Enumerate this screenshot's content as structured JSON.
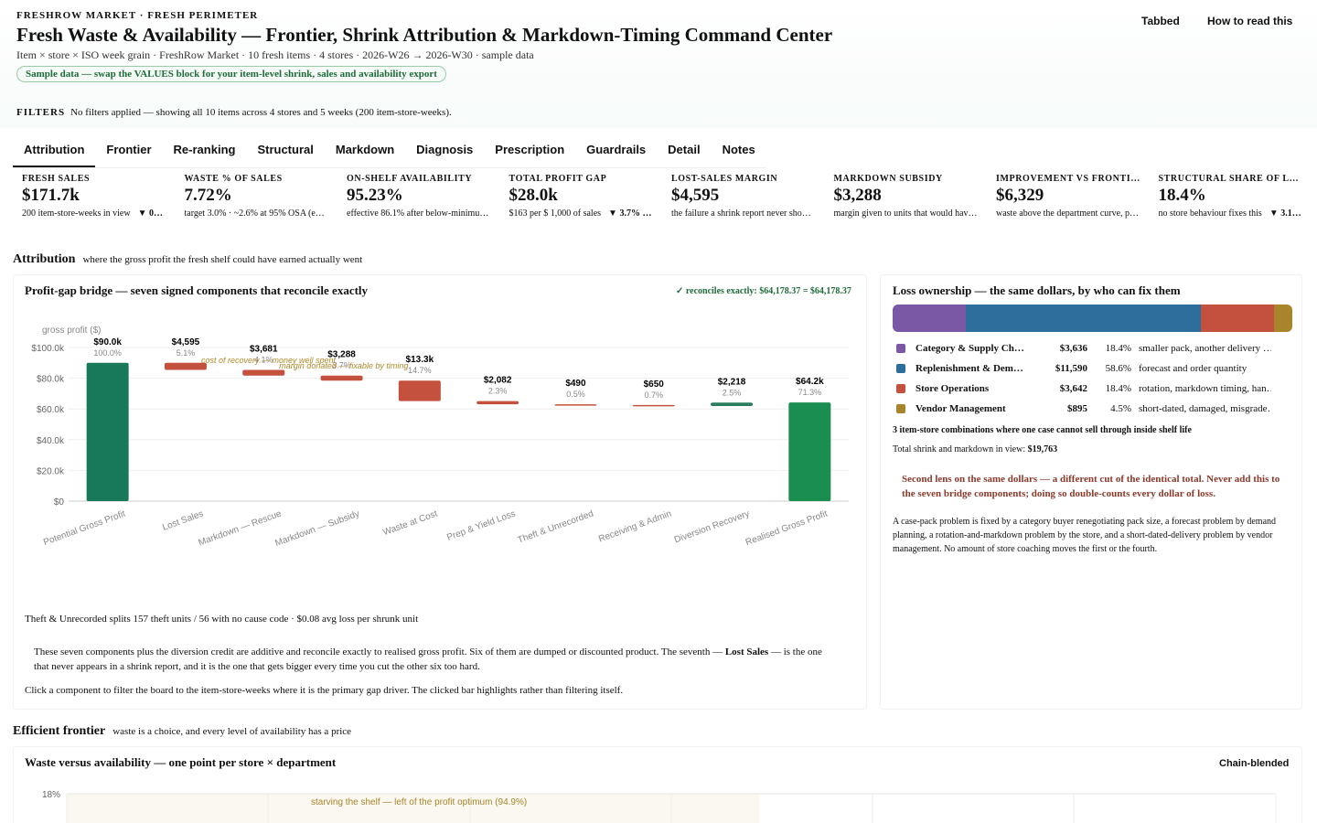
{
  "header": {
    "kicker": "FRESHROW MARKET · FRESH PERIMETER",
    "title": "Fresh Waste & Availability — Frontier, Shrink Attribution & Markdown-Timing Command Center",
    "subtitle": "Item × store × ISO week grain · FreshRow Market · 10 fresh items · 4 stores · 2026-W26 → 2026-W30 · sample data",
    "badge": "Sample data — swap the VALUES block for your item-level shrink, sales and availability export",
    "buttons": [
      "Tabbed",
      "How to read this"
    ]
  },
  "filters": {
    "label": "FILTERS",
    "text": "No filters applied — showing all 10 items across 4 stores and 5 weeks (200 item-store-weeks)."
  },
  "tabs": [
    "Attribution",
    "Frontier",
    "Re-ranking",
    "Structural",
    "Markdown",
    "Diagnosis",
    "Prescription",
    "Guardrails",
    "Detail",
    "Notes"
  ],
  "kpis": [
    {
      "label": "FRESH SALES",
      "value": "$171.7k",
      "note": "200 item-store-weeks in view",
      "delta": "▼ 0…"
    },
    {
      "label": "WASTE % OF SALES",
      "value": "7.72%",
      "note": "target 3.0% · ~2.6% at 95% OSA (e…"
    },
    {
      "label": "ON-SHELF AVAILABILITY",
      "value": "95.23%",
      "note": "effective 86.1% after below-minimu…"
    },
    {
      "label": "TOTAL PROFIT GAP",
      "value": "$28.0k",
      "note": "$163 per $ 1,000 of sales",
      "delta": "▼ 3.7% …"
    },
    {
      "label": "LOST-SALES MARGIN",
      "value": "$4,595",
      "note": "the failure a shrink report never sho…"
    },
    {
      "label": "MARKDOWN SUBSIDY",
      "value": "$3,288",
      "note": "margin given to units that would hav…"
    },
    {
      "label": "IMPROVEMENT VS FRONTI…",
      "value": "$6,329",
      "note": "waste above the department curve, p…"
    },
    {
      "label": "STRUCTURAL SHARE OF L…",
      "value": "18.4%",
      "note": "no store behaviour fixes this",
      "delta": "▼ 3.1…"
    }
  ],
  "attribution": {
    "heading": "Attribution",
    "sub": "where the gross profit the fresh shelf could have earned actually went",
    "reconcile": "✓ reconciles exactly: $64,178.37 = $64,178.37",
    "theft_note": "Theft & Unrecorded splits 157 theft units / 56 with no cause code · $0.08 avg loss per shrunk unit",
    "explain": [
      "These seven components plus the diversion credit are additive and reconcile exactly to realised gross profit. Six of them are dumped or discounted product. The seventh — ",
      "Lost Sales",
      " — is the one that never appears in a shrink report, and it is the one that gets bigger every time you cut the other six too hard."
    ],
    "click_hint": "Click a component to filter the board to the item-store-weeks where it is the primary gap driver. The clicked bar highlights rather than filtering itself."
  },
  "ownership": {
    "title": "Loss ownership — the same dollars, by who can fix them",
    "rows": [
      {
        "name": "Category & Supply Ch…",
        "amount": "$3,636",
        "share": 18.4,
        "share_label": "18.4%",
        "desc": "smaller pack, another delivery …",
        "color": "#7b58a6"
      },
      {
        "name": "Replenishment & Dem…",
        "amount": "$11,590",
        "share": 58.6,
        "share_label": "58.6%",
        "desc": "forecast and order quantity",
        "color": "#2e6e9c"
      },
      {
        "name": "Store Operations",
        "amount": "$3,642",
        "share": 18.4,
        "share_label": "18.4%",
        "desc": "rotation, markdown timing, han…",
        "color": "#c4513d"
      },
      {
        "name": "Vendor Management",
        "amount": "$895",
        "share": 4.5,
        "share_label": "4.5%",
        "desc": "short-dated, damaged, misgrade…",
        "color": "#a8842a"
      }
    ],
    "combos": "3 item-store combinations where one case cannot sell through inside shelf life",
    "total_label": "Total shrink and markdown in view: ",
    "total_value": "$19,763",
    "callout": "Second lens on the same dollars — a different cut of the identical total. Never add this to the seven bridge components; doing so double-counts every dollar of loss.",
    "explain": "A case-pack problem is fixed by a category buyer renegotiating pack size, a forecast problem by demand planning, a rotation-and-markdown problem by the store, and a short-dated-delivery problem by vendor management. No amount of store coaching moves the first or the fourth."
  },
  "frontier": {
    "heading": "Efficient frontier",
    "sub": "waste is a choice, and every level of availability has a price",
    "button": "Chain-blended"
  },
  "chart_data": [
    {
      "type": "waterfall",
      "title": "Profit-gap bridge — seven signed components that reconcile exactly",
      "y_label": "gross profit ($)",
      "categories": [
        "Potential Gross Profit",
        "Lost Sales",
        "Markdown — Rescue",
        "Markdown — Subsidy",
        "Waste at Cost",
        "Prep & Yield Loss",
        "Theft & Unrecorded",
        "Receiving & Admin",
        "Diversion Recovery",
        "Realised Gross Profit"
      ],
      "values": [
        90000,
        4595,
        3681,
        3288,
        13300,
        2082,
        490,
        650,
        2218,
        64200
      ],
      "value_labels": [
        "$90.0k",
        "$4,595",
        "$3,681",
        "$3,288",
        "$13.3k",
        "$2,082",
        "$490",
        "$650",
        "$2,218",
        "$64.2k"
      ],
      "share_labels": [
        "100.0%",
        "5.1%",
        "4.1%",
        "3.7%",
        "14.7%",
        "2.3%",
        "0.5%",
        "0.7%",
        "2.5%",
        "71.3%"
      ],
      "measure": [
        "total",
        "decrease",
        "decrease",
        "decrease",
        "decrease",
        "decrease",
        "decrease",
        "decrease",
        "increase",
        "total"
      ],
      "colors": {
        "total": "#17795a",
        "decrease": "#c4513d",
        "increase": "#2b7d5e",
        "final": "#1a8d50"
      },
      "annotations": [
        "cost of recovery — money well spent",
        "margin donated — fixable by timing"
      ],
      "ylim": [
        0,
        100000
      ],
      "yticks": [
        {
          "value": 0,
          "label": "$0"
        },
        {
          "value": 20000,
          "label": "$20.0k"
        },
        {
          "value": 40000,
          "label": "$40.0k"
        },
        {
          "value": 60000,
          "label": "$60.0k"
        },
        {
          "value": 80000,
          "label": "$80.0k"
        },
        {
          "value": 100000,
          "label": "$100.0k"
        }
      ],
      "grid": true
    },
    {
      "type": "scatter",
      "title": "Waste versus availability — one point per store × department",
      "annotation": "starving the shelf — left of the profit optimum (94.9%)",
      "ylim": [
        0,
        18
      ],
      "yticks": [
        {
          "value": 18,
          "label": "18%"
        }
      ],
      "grid": true
    }
  ]
}
